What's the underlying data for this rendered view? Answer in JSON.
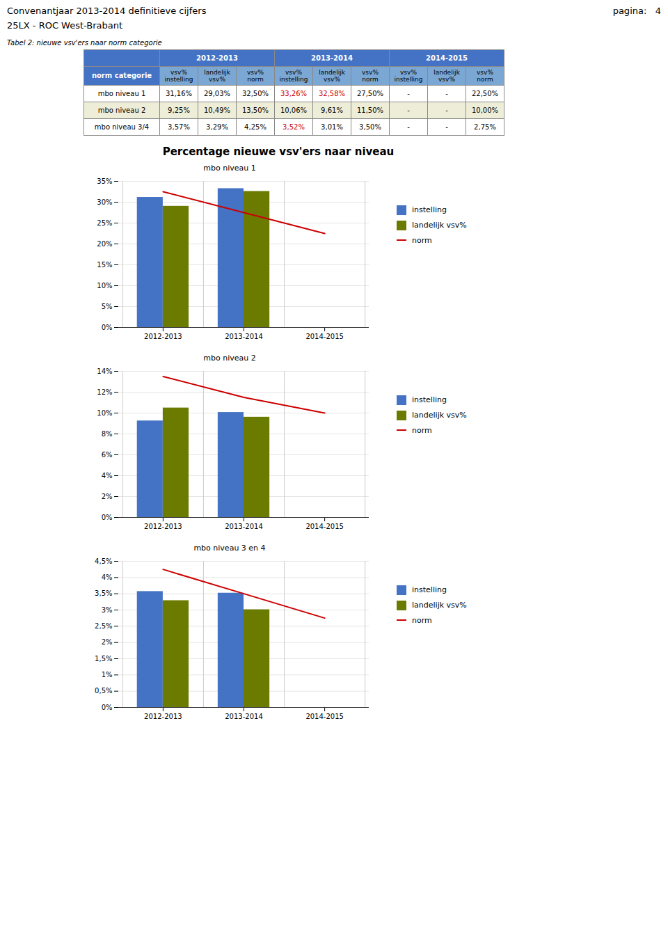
{
  "header": {
    "left": [
      "Convenantjaar 2013-2014 definitieve cijfers",
      "25LX - ROC West-Brabant"
    ],
    "right": "pagina:   4"
  },
  "table": {
    "label": "Tabel 2: nieuwe vsv'ers naar norm categorie",
    "corner": "norm categorie",
    "groups": [
      "2012-2013",
      "2013-2014",
      "2014-2015"
    ],
    "columns": [
      "vsv%\ninstelling",
      "landelijk\nvsv%",
      "vsv%\nnorm",
      "vsv%\ninstelling",
      "landelijk\nvsv%",
      "vsv%\nnorm",
      "vsv%\ninstelling",
      "landelijk\nvsv%",
      "vsv%\nnorm"
    ],
    "rows": [
      {
        "label": "mbo niveau 1",
        "values": [
          "31,16%",
          "29,03%",
          "32,50%",
          "33,26%",
          "32,58%",
          "27,50%",
          "-",
          "-",
          "22,50%"
        ],
        "colors": [
          "#000000",
          "#000000",
          "#000000",
          "#CC0000",
          "#CC0000",
          "#000000",
          "#000000",
          "#000000",
          "#000000"
        ]
      },
      {
        "label": "mbo niveau 2",
        "values": [
          "9,25%",
          "10,49%",
          "13,50%",
          "10,06%",
          "9,61%",
          "11,50%",
          "-",
          "-",
          "10,00%"
        ],
        "colors": [
          "#000000",
          "#000000",
          "#000000",
          "#000000",
          "#000000",
          "#000000",
          "#000000",
          "#000000",
          "#000000"
        ]
      },
      {
        "label": "mbo niveau 3/4",
        "values": [
          "3,57%",
          "3,29%",
          "4,25%",
          "3,52%",
          "3,01%",
          "3,50%",
          "-",
          "-",
          "2,75%"
        ],
        "colors": [
          "#000000",
          "#000000",
          "#000000",
          "#CC0000",
          "#000000",
          "#000000",
          "#000000",
          "#000000",
          "#000000"
        ]
      }
    ]
  },
  "title": "Percentage nieuwe vsv'ers naar niveau",
  "chart_data": [
    {
      "type": "bar",
      "title": "mbo niveau 1",
      "categories": [
        "2012-2013",
        "2013-2014",
        "2014-2015"
      ],
      "series": [
        {
          "name": "instelling",
          "color": "#4472C4",
          "values": [
            31.16,
            33.26,
            null
          ]
        },
        {
          "name": "landelijk vsv%",
          "color": "#6B7B00",
          "values": [
            29.03,
            32.58,
            null
          ]
        },
        {
          "name": "norm",
          "type": "line",
          "color": "#CC0000",
          "values": [
            32.5,
            27.5,
            22.5
          ]
        }
      ],
      "ylim": [
        0,
        35
      ],
      "yticks": [
        {
          "value": 0,
          "label": "0%"
        },
        {
          "value": 5,
          "label": "5%"
        },
        {
          "value": 10,
          "label": "10%"
        },
        {
          "value": 15,
          "label": "15%"
        },
        {
          "value": 20,
          "label": "20%"
        },
        {
          "value": 25,
          "label": "25%"
        },
        {
          "value": 30,
          "label": "30%"
        },
        {
          "value": 35,
          "label": "35%"
        }
      ],
      "grid": true,
      "legend": "right"
    },
    {
      "type": "bar",
      "title": "mbo niveau 2",
      "categories": [
        "2012-2013",
        "2013-2014",
        "2014-2015"
      ],
      "series": [
        {
          "name": "instelling",
          "color": "#4472C4",
          "values": [
            9.25,
            10.06,
            null
          ]
        },
        {
          "name": "landelijk vsv%",
          "color": "#6B7B00",
          "values": [
            10.49,
            9.61,
            null
          ]
        },
        {
          "name": "norm",
          "type": "line",
          "color": "#CC0000",
          "values": [
            13.5,
            11.5,
            10.0
          ]
        }
      ],
      "ylim": [
        0,
        14
      ],
      "yticks": [
        {
          "value": 0,
          "label": "0%"
        },
        {
          "value": 2,
          "label": "2%"
        },
        {
          "value": 4,
          "label": "4%"
        },
        {
          "value": 6,
          "label": "6%"
        },
        {
          "value": 8,
          "label": "8%"
        },
        {
          "value": 10,
          "label": "10%"
        },
        {
          "value": 12,
          "label": "12%"
        },
        {
          "value": 14,
          "label": "14%"
        }
      ],
      "grid": true,
      "legend": "right"
    },
    {
      "type": "bar",
      "title": "mbo niveau 3 en 4",
      "categories": [
        "2012-2013",
        "2013-2014",
        "2014-2015"
      ],
      "series": [
        {
          "name": "instelling",
          "color": "#4472C4",
          "values": [
            3.57,
            3.52,
            null
          ]
        },
        {
          "name": "landelijk vsv%",
          "color": "#6B7B00",
          "values": [
            3.29,
            3.01,
            null
          ]
        },
        {
          "name": "norm",
          "type": "line",
          "color": "#CC0000",
          "values": [
            4.25,
            3.5,
            2.75
          ]
        }
      ],
      "ylim": [
        0,
        4.5
      ],
      "yticks": [
        {
          "value": 0,
          "label": "0%"
        },
        {
          "value": 0.5,
          "label": "0,5%"
        },
        {
          "value": 1,
          "label": "1%"
        },
        {
          "value": 1.5,
          "label": "1,5%"
        },
        {
          "value": 2,
          "label": "2%"
        },
        {
          "value": 2.5,
          "label": "2,5%"
        },
        {
          "value": 3,
          "label": "3%"
        },
        {
          "value": 3.5,
          "label": "3,5%"
        },
        {
          "value": 4,
          "label": "4%"
        },
        {
          "value": 4.5,
          "label": "4,5%"
        }
      ],
      "grid": true,
      "legend": "right"
    }
  ]
}
